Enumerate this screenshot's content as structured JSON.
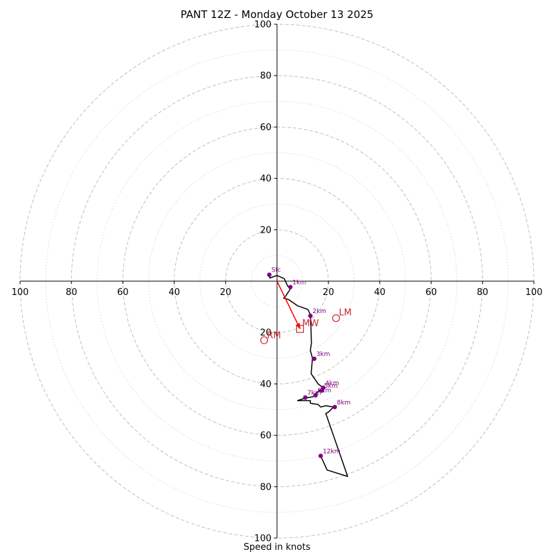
{
  "chart_data": {
    "type": "hodograph",
    "title": "PANT 12Z - Monday October 13 2025",
    "xlabel": "Speed in knots",
    "units": "knots",
    "max_speed": 100,
    "rings": [
      20,
      40,
      60,
      80,
      100
    ],
    "minor_rings": [
      10,
      30,
      50,
      70,
      90
    ],
    "tick_labels": [
      "20",
      "40",
      "60",
      "80",
      "100"
    ],
    "x_tick_labels": [
      "100",
      "80",
      "60",
      "40",
      "20",
      "20",
      "40",
      "60",
      "80",
      "100"
    ],
    "trace": [
      [
        -3,
        2.5
      ],
      [
        -2.8,
        1.2
      ],
      [
        0,
        2.2
      ],
      [
        2.8,
        1.0
      ],
      [
        4.2,
        -2.0
      ],
      [
        5.2,
        -3.0
      ],
      [
        3.4,
        -5.8
      ],
      [
        2.6,
        -6.6
      ],
      [
        4.6,
        -7.2
      ],
      [
        8.0,
        -9.6
      ],
      [
        12.0,
        -11.0
      ],
      [
        13.0,
        -13.0
      ],
      [
        13.2,
        -18.0
      ],
      [
        13.4,
        -24.0
      ],
      [
        13.0,
        -27.0
      ],
      [
        13.8,
        -30.0
      ],
      [
        13.3,
        -36.0
      ],
      [
        16.0,
        -40.0
      ],
      [
        18.0,
        -41.5
      ],
      [
        16.0,
        -43.0
      ],
      [
        14.0,
        -45.0
      ],
      [
        11.0,
        -45.5
      ],
      [
        8.0,
        -46.5
      ],
      [
        13.0,
        -46.5
      ],
      [
        13.0,
        -47.5
      ],
      [
        16.0,
        -48.0
      ],
      [
        17.0,
        -49.0
      ],
      [
        19.0,
        -48.5
      ],
      [
        22.0,
        -49.0
      ],
      [
        20.0,
        -51.0
      ],
      [
        19.0,
        -51.5
      ],
      [
        27.5,
        -76.0
      ],
      [
        19.5,
        -73.5
      ],
      [
        17.0,
        -68.0
      ]
    ],
    "height_markers": [
      {
        "label": "Sfc",
        "u": -3,
        "v": 2.5
      },
      {
        "label": "1km",
        "u": 5.2,
        "v": -2.3
      },
      {
        "label": "2km",
        "u": 13,
        "v": -13.5
      },
      {
        "label": "3km",
        "u": 14.5,
        "v": -30.2
      },
      {
        "label": "4km",
        "u": 18,
        "v": -41.5
      },
      {
        "label": "5km",
        "u": 17.5,
        "v": -42.6
      },
      {
        "label": "6km",
        "u": 15,
        "v": -44.4
      },
      {
        "label": "7km",
        "u": 11,
        "v": -45.3
      },
      {
        "label": "8km",
        "u": 22.5,
        "v": -49
      },
      {
        "label": "12km",
        "u": 17,
        "v": -68
      }
    ],
    "storm_motion": {
      "MW": {
        "label": "MW",
        "u": 9,
        "v": -18.6
      },
      "LM": {
        "label": "LM",
        "u": 23,
        "v": -14.4
      },
      "RM": {
        "label": "RM",
        "u": -5,
        "v": -23
      }
    },
    "shear_vector": {
      "from": [
        0,
        0
      ],
      "to": [
        9,
        -18.6
      ]
    },
    "colors": {
      "grid": "#bfbfbf",
      "trace": "#000000",
      "marker": "#800080",
      "storm": "#c8282d",
      "shear": "#ff0000"
    }
  }
}
